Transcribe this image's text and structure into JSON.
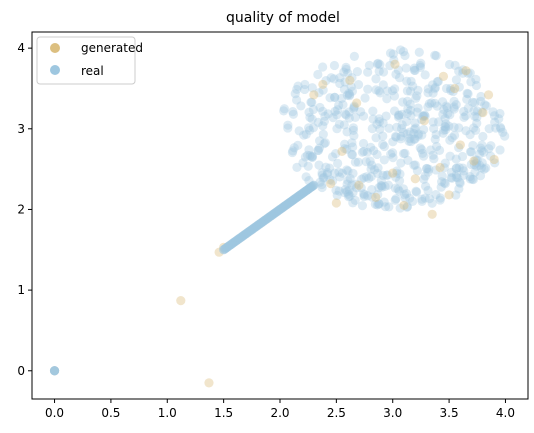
{
  "chart_data": {
    "type": "scatter",
    "title": "quality of model",
    "xlabel": "",
    "ylabel": "",
    "xlim": [
      -0.2,
      4.2
    ],
    "ylim": [
      -0.35,
      4.2
    ],
    "xticks": [
      "0.0",
      "0.5",
      "1.0",
      "1.5",
      "2.0",
      "2.5",
      "3.0",
      "3.5",
      "4.0"
    ],
    "yticks": [
      "0",
      "1",
      "2",
      "3",
      "4"
    ],
    "grid": false,
    "legend_position": "top-left",
    "legend_entries": [
      "generated",
      "real"
    ],
    "series": [
      {
        "name": "generated",
        "color": "#dcbf80",
        "alpha": 0.4,
        "points": [
          [
            0,
            0
          ],
          [
            1.12,
            0.87
          ],
          [
            1.37,
            -0.15
          ],
          [
            1.46,
            1.47
          ],
          [
            1.5,
            1.53
          ],
          [
            2.3,
            3.42
          ],
          [
            2.38,
            3.55
          ],
          [
            2.45,
            2.32
          ],
          [
            2.5,
            2.08
          ],
          [
            2.62,
            3.6
          ],
          [
            2.7,
            2.3
          ],
          [
            2.85,
            2.15
          ],
          [
            3.0,
            2.45
          ],
          [
            3.1,
            2.05
          ],
          [
            3.2,
            2.38
          ],
          [
            3.35,
            1.94
          ],
          [
            3.42,
            2.52
          ],
          [
            3.45,
            3.65
          ],
          [
            3.5,
            2.18
          ],
          [
            3.55,
            3.5
          ],
          [
            3.65,
            3.72
          ],
          [
            3.72,
            2.6
          ],
          [
            3.8,
            3.2
          ],
          [
            3.85,
            3.42
          ],
          [
            3.9,
            2.62
          ],
          [
            2.55,
            2.72
          ],
          [
            2.68,
            3.32
          ],
          [
            3.02,
            3.8
          ],
          [
            3.28,
            3.1
          ],
          [
            3.6,
            2.8
          ]
        ]
      },
      {
        "name": "real",
        "color": "#9ec7e0",
        "alpha": 0.35,
        "diagonal": {
          "from": 1.5,
          "to": 2.3,
          "count": 90
        },
        "origin_count": 6,
        "cloud": {
          "cx": 3.0,
          "cy": 3.0,
          "r": 1.0,
          "count": 520
        }
      }
    ]
  }
}
